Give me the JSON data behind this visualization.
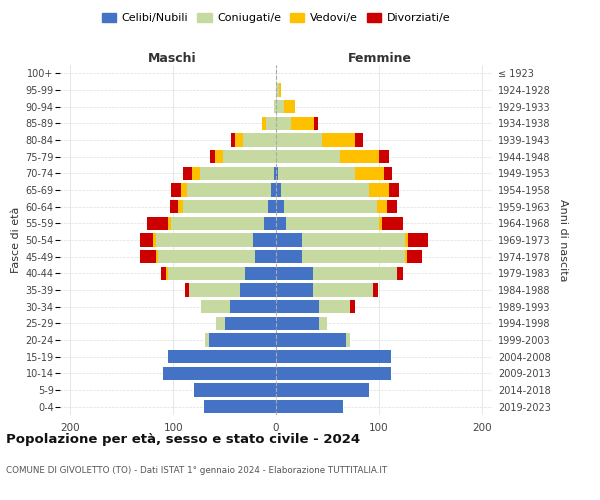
{
  "age_groups": [
    "0-4",
    "5-9",
    "10-14",
    "15-19",
    "20-24",
    "25-29",
    "30-34",
    "35-39",
    "40-44",
    "45-49",
    "50-54",
    "55-59",
    "60-64",
    "65-69",
    "70-74",
    "75-79",
    "80-84",
    "85-89",
    "90-94",
    "95-99",
    "100+"
  ],
  "birth_years": [
    "2019-2023",
    "2014-2018",
    "2009-2013",
    "2004-2008",
    "1999-2003",
    "1994-1998",
    "1989-1993",
    "1984-1988",
    "1979-1983",
    "1974-1978",
    "1969-1973",
    "1964-1968",
    "1959-1963",
    "1954-1958",
    "1949-1953",
    "1944-1948",
    "1939-1943",
    "1934-1938",
    "1929-1933",
    "1924-1928",
    "≤ 1923"
  ],
  "colors": {
    "celibe": "#4472c4",
    "coniugato": "#c5d9a0",
    "vedovo": "#ffc000",
    "divorziato": "#cc0000"
  },
  "maschi": {
    "celibe": [
      70,
      80,
      110,
      105,
      65,
      50,
      45,
      35,
      30,
      20,
      22,
      12,
      8,
      5,
      2,
      0,
      0,
      0,
      0,
      0,
      0
    ],
    "coniugato": [
      0,
      0,
      0,
      0,
      4,
      8,
      28,
      50,
      75,
      95,
      95,
      90,
      82,
      82,
      72,
      52,
      32,
      10,
      2,
      0,
      0
    ],
    "vedovo": [
      0,
      0,
      0,
      0,
      0,
      0,
      0,
      0,
      2,
      2,
      3,
      3,
      5,
      5,
      8,
      7,
      8,
      4,
      0,
      0,
      0
    ],
    "divorziato": [
      0,
      0,
      0,
      0,
      0,
      0,
      0,
      3,
      5,
      15,
      12,
      20,
      8,
      10,
      8,
      5,
      4,
      0,
      0,
      0,
      0
    ]
  },
  "femmine": {
    "nubile": [
      65,
      90,
      112,
      112,
      68,
      42,
      42,
      36,
      36,
      25,
      25,
      10,
      8,
      5,
      2,
      0,
      0,
      0,
      0,
      0,
      0
    ],
    "coniugata": [
      0,
      0,
      0,
      0,
      4,
      8,
      30,
      58,
      82,
      100,
      100,
      90,
      90,
      85,
      75,
      62,
      45,
      15,
      8,
      3,
      0
    ],
    "vedova": [
      0,
      0,
      0,
      0,
      0,
      0,
      0,
      0,
      0,
      2,
      3,
      3,
      10,
      20,
      28,
      38,
      32,
      22,
      10,
      2,
      0
    ],
    "divorziata": [
      0,
      0,
      0,
      0,
      0,
      0,
      5,
      5,
      5,
      15,
      20,
      20,
      10,
      10,
      8,
      10,
      8,
      4,
      0,
      0,
      0
    ]
  },
  "title_main": "Popolazione per età, sesso e stato civile - 2024",
  "title_sub": "COMUNE DI GIVOLETTO (TO) - Dati ISTAT 1° gennaio 2024 - Elaborazione TUTTITALIA.IT",
  "xlabel_left": "Maschi",
  "xlabel_right": "Femmine",
  "ylabel_left": "Fasce di età",
  "ylabel_right": "Anni di nascita",
  "xlim": 210,
  "legend_labels": [
    "Celibi/Nubili",
    "Coniugati/e",
    "Vedovi/e",
    "Divorziati/e"
  ],
  "bg_color": "#ffffff",
  "grid_color": "#cccccc"
}
